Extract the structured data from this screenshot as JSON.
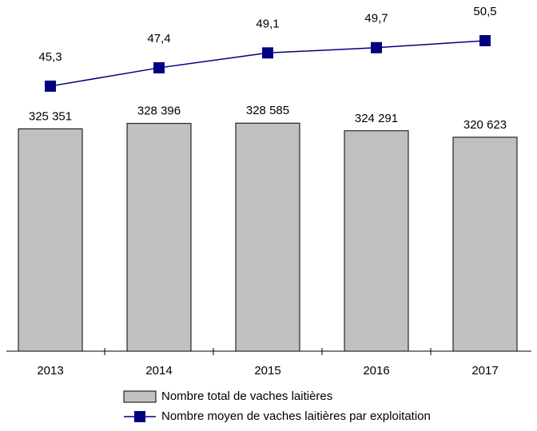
{
  "chart_data": {
    "type": "bar",
    "categories": [
      "2013",
      "2014",
      "2015",
      "2016",
      "2017"
    ],
    "series": [
      {
        "name": "Nombre total de vaches laitières",
        "type": "bar",
        "color": "#c0c0c0",
        "values": [
          325351,
          328396,
          328585,
          324291,
          320623
        ],
        "value_labels": [
          "325 351",
          "328 396",
          "328 585",
          "324 291",
          "320 623"
        ]
      },
      {
        "name": "Nombre moyen de vaches laitières par exploitation",
        "type": "line",
        "axis": "y2",
        "color": "#000080",
        "values": [
          45.3,
          47.4,
          49.1,
          49.7,
          50.5
        ],
        "value_labels": [
          "45,3",
          "47,4",
          "49,1",
          "49,7",
          "50,5"
        ]
      }
    ],
    "ylim": [
      200000,
      380000
    ],
    "y2lim": [
      15,
      51.5
    ],
    "legend": "bottom"
  }
}
